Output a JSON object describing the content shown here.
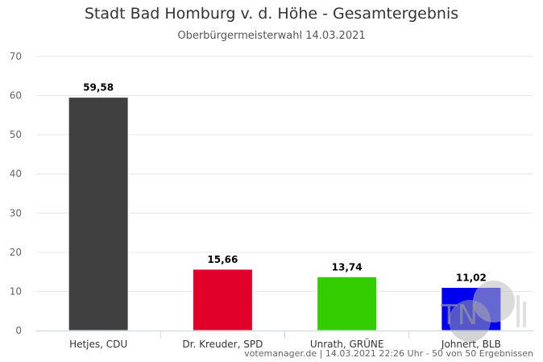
{
  "chart_data": {
    "type": "bar",
    "title": "Stadt Bad Homburg v. d. Höhe - Gesamtergebnis",
    "subtitle": "Oberbürgermeisterwahl 14.03.2021",
    "categories": [
      "Hetjes, CDU",
      "Dr. Kreuder, SPD",
      "Unrath, GRÜNE",
      "Johnert, BLB"
    ],
    "values": [
      59.58,
      15.66,
      13.74,
      11.02
    ],
    "value_labels": [
      "59,58",
      "15,66",
      "13,74",
      "11,02"
    ],
    "colors": [
      "#404040",
      "#e0002a",
      "#33cc00",
      "#0000ee"
    ],
    "ylim": [
      0,
      70
    ],
    "yticks": [
      0,
      10,
      20,
      30,
      40,
      50,
      60,
      70
    ],
    "grid": true,
    "legend": "none"
  },
  "credit": "votemanager.de | 14.03.2021 22:26 Uhr - 50 von 50 Ergebnissen",
  "watermark_text": "TN"
}
